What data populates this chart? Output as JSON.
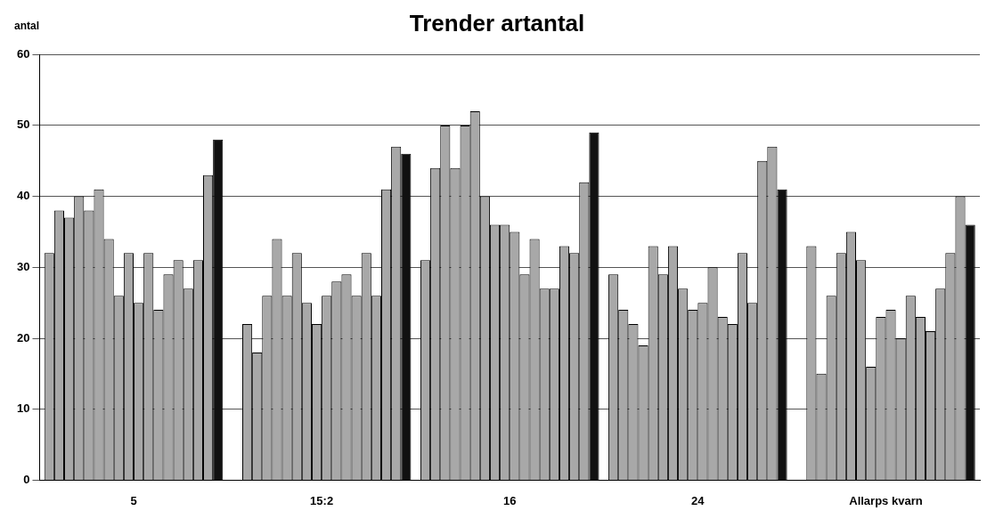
{
  "chart_data": {
    "type": "bar",
    "title": "Trender artantal",
    "ylabel": "antal",
    "categories": [
      "5",
      "15:2",
      "16",
      "24",
      "Allarps kvarn"
    ],
    "series": [
      {
        "color": "#a8a8a8",
        "values": [
          32,
          null,
          31,
          29,
          null
        ]
      },
      {
        "color": "#a8a8a8",
        "values": [
          38,
          22,
          44,
          24,
          33
        ]
      },
      {
        "color": "#a8a8a8",
        "values": [
          37,
          18,
          50,
          22,
          15
        ]
      },
      {
        "color": "#a8a8a8",
        "values": [
          40,
          26,
          44,
          19,
          26
        ]
      },
      {
        "color": "#a8a8a8",
        "values": [
          38,
          34,
          50,
          33,
          32
        ]
      },
      {
        "color": "#a8a8a8",
        "values": [
          41,
          26,
          52,
          29,
          35
        ]
      },
      {
        "color": "#a8a8a8",
        "values": [
          34,
          32,
          40,
          33,
          31
        ]
      },
      {
        "color": "#a8a8a8",
        "values": [
          26,
          25,
          36,
          27,
          16
        ]
      },
      {
        "color": "#a8a8a8",
        "values": [
          32,
          22,
          36,
          24,
          23
        ]
      },
      {
        "color": "#a8a8a8",
        "values": [
          25,
          26,
          35,
          25,
          24
        ]
      },
      {
        "color": "#a8a8a8",
        "values": [
          32,
          28,
          29,
          30,
          20
        ]
      },
      {
        "color": "#a8a8a8",
        "values": [
          24,
          29,
          34,
          23,
          26
        ]
      },
      {
        "color": "#a8a8a8",
        "values": [
          29,
          26,
          27,
          22,
          23
        ]
      },
      {
        "color": "#a8a8a8",
        "values": [
          31,
          32,
          27,
          32,
          21
        ]
      },
      {
        "color": "#a8a8a8",
        "values": [
          27,
          26,
          33,
          25,
          27
        ]
      },
      {
        "color": "#a8a8a8",
        "values": [
          31,
          41,
          32,
          45,
          32
        ]
      },
      {
        "color": "#a8a8a8",
        "values": [
          43,
          47,
          42,
          47,
          40
        ]
      },
      {
        "color": "#111111",
        "values": [
          48,
          46,
          49,
          41,
          36
        ]
      }
    ],
    "ylim": [
      0,
      60
    ],
    "yticks": [
      0,
      10,
      20,
      30,
      40,
      50,
      60
    ],
    "grid": "y"
  }
}
